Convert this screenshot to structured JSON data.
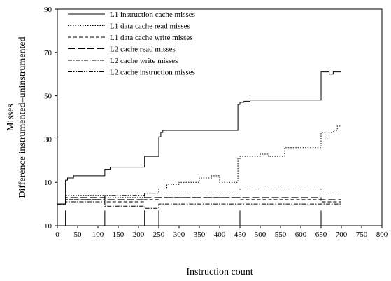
{
  "chart_data": {
    "type": "line",
    "title": "",
    "xlabel": "Instruction count",
    "ylabel": "Misses",
    "ylabel2": "Difference instrumented–uninstrumented",
    "xlim": [
      0,
      800
    ],
    "ylim": [
      -10,
      90
    ],
    "xticks": [
      0,
      50,
      100,
      150,
      200,
      250,
      300,
      350,
      400,
      450,
      500,
      550,
      600,
      650,
      700,
      750,
      800
    ],
    "yticks": [
      -10,
      10,
      30,
      50,
      70,
      90
    ],
    "grid": false,
    "legend_position": "top-left",
    "vertical_markers": [
      20,
      117,
      215,
      250,
      450,
      650
    ],
    "series": [
      {
        "name": "L1 instruction cache misses",
        "dash": "solid",
        "x": [
          0,
          20,
          20,
          25,
          25,
          40,
          40,
          117,
          117,
          130,
          130,
          215,
          215,
          250,
          250,
          255,
          255,
          260,
          260,
          445,
          445,
          450,
          450,
          460,
          460,
          475,
          475,
          650,
          650,
          670,
          670,
          680,
          680,
          700
        ],
        "y": [
          0,
          0,
          11,
          11,
          12,
          12,
          13,
          13,
          16,
          16,
          17,
          17,
          22,
          22,
          31,
          31,
          33,
          33,
          34,
          34,
          46,
          46,
          47,
          47,
          47.5,
          47.5,
          48,
          48,
          61,
          61,
          60,
          60,
          61,
          61
        ]
      },
      {
        "name": "L1 data cache read misses",
        "dash": "dotted",
        "x": [
          0,
          20,
          20,
          117,
          117,
          215,
          215,
          250,
          250,
          270,
          270,
          300,
          300,
          350,
          350,
          380,
          380,
          400,
          400,
          445,
          445,
          450,
          450,
          500,
          500,
          520,
          520,
          560,
          560,
          650,
          650,
          660,
          660,
          670,
          670,
          680,
          680,
          690,
          690,
          700
        ],
        "y": [
          0,
          0,
          4,
          4,
          3,
          3,
          5,
          5,
          7,
          7,
          9,
          9,
          10,
          10,
          12,
          12,
          13,
          13,
          10,
          10,
          21,
          21,
          22,
          22,
          23,
          23,
          22,
          22,
          26,
          26,
          33,
          33,
          30,
          30,
          33,
          33,
          34,
          34,
          36,
          36
        ]
      },
      {
        "name": "L1 data cache write misses",
        "dash": "short-dash",
        "x": [
          0,
          20,
          20,
          117,
          117,
          215,
          215,
          250,
          250,
          450,
          450,
          650,
          650,
          700
        ],
        "y": [
          0,
          0,
          2,
          2,
          1,
          1,
          2,
          2,
          3,
          3,
          2,
          2,
          1,
          1
        ]
      },
      {
        "name": "L2 cache read misses",
        "dash": "long-dash",
        "x": [
          0,
          20,
          20,
          117,
          117,
          215,
          215,
          450,
          450,
          650,
          650,
          700
        ],
        "y": [
          0,
          0,
          3,
          3,
          2,
          2,
          3,
          3,
          3,
          3,
          2,
          2
        ]
      },
      {
        "name": "L2 cache write misses",
        "dash": "dash-dot",
        "x": [
          0,
          20,
          20,
          117,
          117,
          215,
          215,
          250,
          250,
          450,
          450,
          650,
          650,
          700
        ],
        "y": [
          0,
          0,
          1,
          1,
          -1,
          -1,
          -2,
          -2,
          0,
          0,
          0,
          0,
          0,
          0
        ]
      },
      {
        "name": "L2 cache instruction misses",
        "dash": "dash-dot-dot",
        "x": [
          0,
          20,
          20,
          117,
          117,
          215,
          215,
          250,
          250,
          450,
          450,
          650,
          650,
          700
        ],
        "y": [
          0,
          0,
          2,
          2,
          4,
          4,
          5,
          5,
          6,
          6,
          7,
          7,
          6,
          6
        ]
      }
    ]
  }
}
